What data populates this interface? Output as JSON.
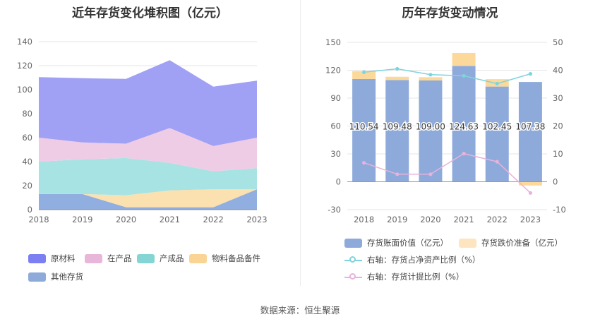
{
  "left_title": "近年存货变化堆积图（亿元）",
  "right_title": "历年存货变动情况",
  "source": "数据来源：恒生聚源",
  "chart_data": [
    {
      "type": "area",
      "stacked": true,
      "title": "近年存货变化堆积图（亿元）",
      "x": [
        "2018",
        "2019",
        "2020",
        "2021",
        "2022",
        "2023"
      ],
      "ylim": [
        0,
        140
      ],
      "yticks": [
        0,
        20,
        40,
        60,
        80,
        100,
        120,
        140
      ],
      "grid": true,
      "legend_position": "bottom",
      "series": [
        {
          "name": "其他存货",
          "color": "#90aee0",
          "values": [
            13,
            13,
            2,
            2,
            2,
            17
          ]
        },
        {
          "name": "物料备品备件",
          "color": "#fbe0b0",
          "values": [
            0,
            0,
            10,
            14,
            15,
            0
          ]
        },
        {
          "name": "产成品",
          "color": "#a8e3e3",
          "values": [
            27,
            29,
            31,
            23,
            15,
            17.5
          ]
        },
        {
          "name": "在产品",
          "color": "#efcce6",
          "values": [
            20,
            14,
            12,
            29,
            21,
            25.5
          ]
        },
        {
          "name": "原材料",
          "color": "#a0a0f5",
          "values": [
            50.5,
            53.5,
            54,
            56.6,
            49.5,
            47.5
          ]
        }
      ],
      "legend": [
        {
          "name": "原材料",
          "color": "#7b7ff2"
        },
        {
          "name": "在产品",
          "color": "#e7b6d9"
        },
        {
          "name": "产成品",
          "color": "#86d5d5"
        },
        {
          "name": "物料备品备件",
          "color": "#fad494"
        },
        {
          "name": "其他存货",
          "color": "#8eaadb"
        }
      ]
    },
    {
      "type": "bar",
      "title": "历年存货变动情况",
      "categories": [
        "2018",
        "2019",
        "2020",
        "2021",
        "2022",
        "2023"
      ],
      "ylim": [
        -30,
        150
      ],
      "yticks": [
        -30,
        0,
        30,
        60,
        90,
        120,
        150
      ],
      "y2lim": [
        -10,
        50
      ],
      "y2ticks": [
        -10,
        0,
        10,
        20,
        30,
        40,
        50
      ],
      "grid": true,
      "legend_position": "bottom",
      "series": [
        {
          "name": "存货账面价值（亿元）",
          "kind": "bar",
          "color": "#8eaadb",
          "values": [
            110.54,
            109.48,
            109.0,
            124.63,
            102.45,
            107.38
          ],
          "labels": [
            "110.54",
            "109.48",
            "109.00",
            "124.63",
            "102.45",
            "107.38"
          ]
        },
        {
          "name": "存货跌价准备（亿元）",
          "kind": "bar_stack",
          "color": "#fcd99a",
          "values": [
            8.5,
            3.5,
            3.5,
            14.0,
            8.0,
            -4.0
          ]
        },
        {
          "name": "右轴：存货占净资产比例（%）",
          "kind": "line",
          "axis": "right",
          "color": "#7fd4dc",
          "values": [
            39.3,
            40.5,
            38.4,
            38.0,
            35.2,
            38.7
          ]
        },
        {
          "name": "右轴：存货计提比例（%）",
          "kind": "line",
          "axis": "right",
          "color": "#e7b3da",
          "values": [
            6.8,
            2.7,
            2.7,
            10.1,
            7.2,
            -4.0
          ]
        }
      ],
      "legend": [
        {
          "name": "存货账面价值（亿元）",
          "color": "#8eaadb",
          "kind": "box"
        },
        {
          "name": "存货跌价准备（亿元）",
          "color": "#fde5c0",
          "kind": "box"
        },
        {
          "name": "右轴：存货占净资产比例（%）",
          "color": "#7fd4dc",
          "kind": "line"
        },
        {
          "name": "右轴：存货计提比例（%）",
          "color": "#e7b3da",
          "kind": "line"
        }
      ]
    }
  ]
}
